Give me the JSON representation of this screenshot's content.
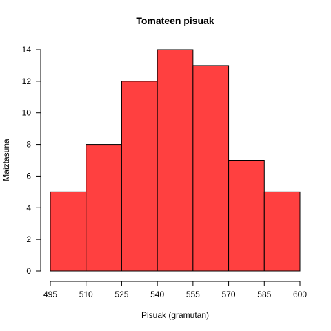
{
  "chart_data": {
    "type": "bar",
    "title": "Tomateen pisuak",
    "xlabel": "Pisuak (gramutan)",
    "ylabel": "Maiztasuna",
    "bin_edges": [
      495,
      510,
      525,
      540,
      555,
      570,
      585,
      600
    ],
    "values": [
      5,
      8,
      12,
      14,
      13,
      7,
      5
    ],
    "xlim": [
      495,
      600
    ],
    "ylim": [
      0,
      14
    ],
    "x_ticks": [
      495,
      510,
      525,
      540,
      555,
      570,
      585,
      600
    ],
    "y_ticks": [
      0,
      2,
      4,
      6,
      8,
      10,
      12,
      14
    ],
    "grid": false,
    "legend": "none",
    "bar_color": "#ff4040",
    "edge_color": "#000000"
  }
}
